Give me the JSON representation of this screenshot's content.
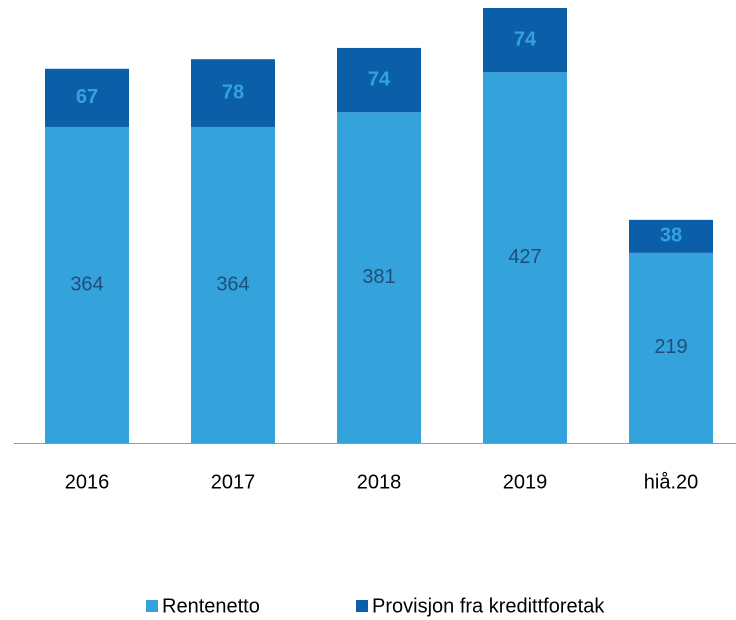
{
  "chart_data": {
    "type": "stacked_bar",
    "categories": [
      "2016",
      "2017",
      "2018",
      "2019",
      "hiå.20"
    ],
    "series": [
      {
        "name": "Rentenetto",
        "color": "#34a3db",
        "values": [
          364,
          364,
          381,
          427,
          219
        ]
      },
      {
        "name": "Provisjon fra kredittforetak",
        "color": "#0b5ea8",
        "values": [
          67,
          78,
          74,
          74,
          38
        ]
      }
    ],
    "legend": "bottom"
  }
}
